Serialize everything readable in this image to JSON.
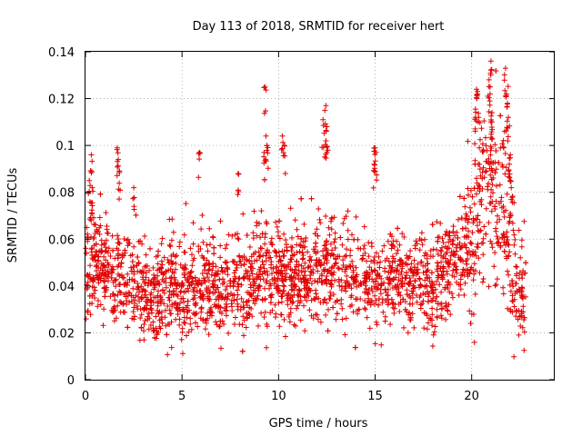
{
  "chart_data": {
    "type": "scatter",
    "title": "Day 113 of 2018, SRMTID for receiver hert",
    "xlabel": "GPS time / hours",
    "ylabel": "SRMTID / TECUs",
    "xlim": [
      0,
      24.3
    ],
    "ylim": [
      0,
      0.14
    ],
    "x_ticks": [
      0,
      5,
      10,
      15,
      20
    ],
    "x_tick_labels": [
      "0",
      "5",
      "10",
      "15",
      "20"
    ],
    "y_ticks": [
      0,
      0.02,
      0.04,
      0.06,
      0.08,
      0.1,
      0.12,
      0.14
    ],
    "y_tick_labels": [
      "0",
      "0.02",
      "0.04",
      "0.06",
      "0.08",
      "0.1",
      "0.12",
      "0.14"
    ],
    "grid": true,
    "marker": "+",
    "marker_color": "#e00000",
    "series": [
      {
        "name": "SRMTID",
        "x_range": [
          0,
          22.8
        ],
        "n_points": 2600,
        "baseline_profile": [
          [
            0.0,
            0.046
          ],
          [
            0.5,
            0.052
          ],
          [
            1.0,
            0.048
          ],
          [
            1.5,
            0.045
          ],
          [
            2.0,
            0.044
          ],
          [
            2.5,
            0.04
          ],
          [
            3.0,
            0.036
          ],
          [
            3.5,
            0.037
          ],
          [
            4.0,
            0.038
          ],
          [
            4.5,
            0.037
          ],
          [
            5.0,
            0.036
          ],
          [
            5.5,
            0.04
          ],
          [
            6.0,
            0.042
          ],
          [
            7.0,
            0.038
          ],
          [
            8.0,
            0.04
          ],
          [
            9.0,
            0.046
          ],
          [
            10.0,
            0.044
          ],
          [
            11.0,
            0.043
          ],
          [
            12.0,
            0.046
          ],
          [
            13.0,
            0.046
          ],
          [
            14.0,
            0.044
          ],
          [
            15.0,
            0.043
          ],
          [
            16.0,
            0.042
          ],
          [
            17.0,
            0.044
          ],
          [
            18.0,
            0.04
          ],
          [
            19.0,
            0.048
          ],
          [
            19.5,
            0.055
          ],
          [
            20.0,
            0.062
          ],
          [
            20.5,
            0.072
          ],
          [
            21.0,
            0.082
          ],
          [
            21.5,
            0.07
          ],
          [
            22.0,
            0.056
          ],
          [
            22.3,
            0.038
          ],
          [
            22.8,
            0.036
          ]
        ],
        "spikes": [
          [
            0.3,
            0.096
          ],
          [
            0.35,
            0.082
          ],
          [
            0.2,
            0.085
          ],
          [
            1.65,
            0.099
          ],
          [
            1.7,
            0.094
          ],
          [
            1.75,
            0.089
          ],
          [
            2.5,
            0.082
          ],
          [
            5.9,
            0.097
          ],
          [
            7.9,
            0.088
          ],
          [
            9.3,
            0.125
          ],
          [
            9.35,
            0.104
          ],
          [
            9.4,
            0.1
          ],
          [
            9.25,
            0.097
          ],
          [
            10.2,
            0.104
          ],
          [
            10.3,
            0.1
          ],
          [
            12.3,
            0.111
          ],
          [
            12.45,
            0.117
          ],
          [
            12.5,
            0.108
          ],
          [
            12.45,
            0.102
          ],
          [
            15.0,
            0.099
          ],
          [
            15.05,
            0.097
          ],
          [
            14.95,
            0.092
          ],
          [
            20.25,
            0.124
          ],
          [
            20.3,
            0.123
          ],
          [
            20.2,
            0.112
          ],
          [
            21.0,
            0.136
          ],
          [
            20.9,
            0.128
          ],
          [
            20.95,
            0.122
          ],
          [
            21.05,
            0.114
          ],
          [
            21.0,
            0.11
          ],
          [
            21.75,
            0.133
          ],
          [
            21.8,
            0.122
          ],
          [
            21.85,
            0.118
          ],
          [
            21.9,
            0.112
          ],
          [
            21.7,
            0.106
          ],
          [
            22.0,
            0.096
          ],
          [
            21.95,
            0.092
          ],
          [
            22.05,
            0.082
          ],
          [
            20.6,
            0.098
          ],
          [
            20.4,
            0.092
          ]
        ]
      }
    ]
  }
}
